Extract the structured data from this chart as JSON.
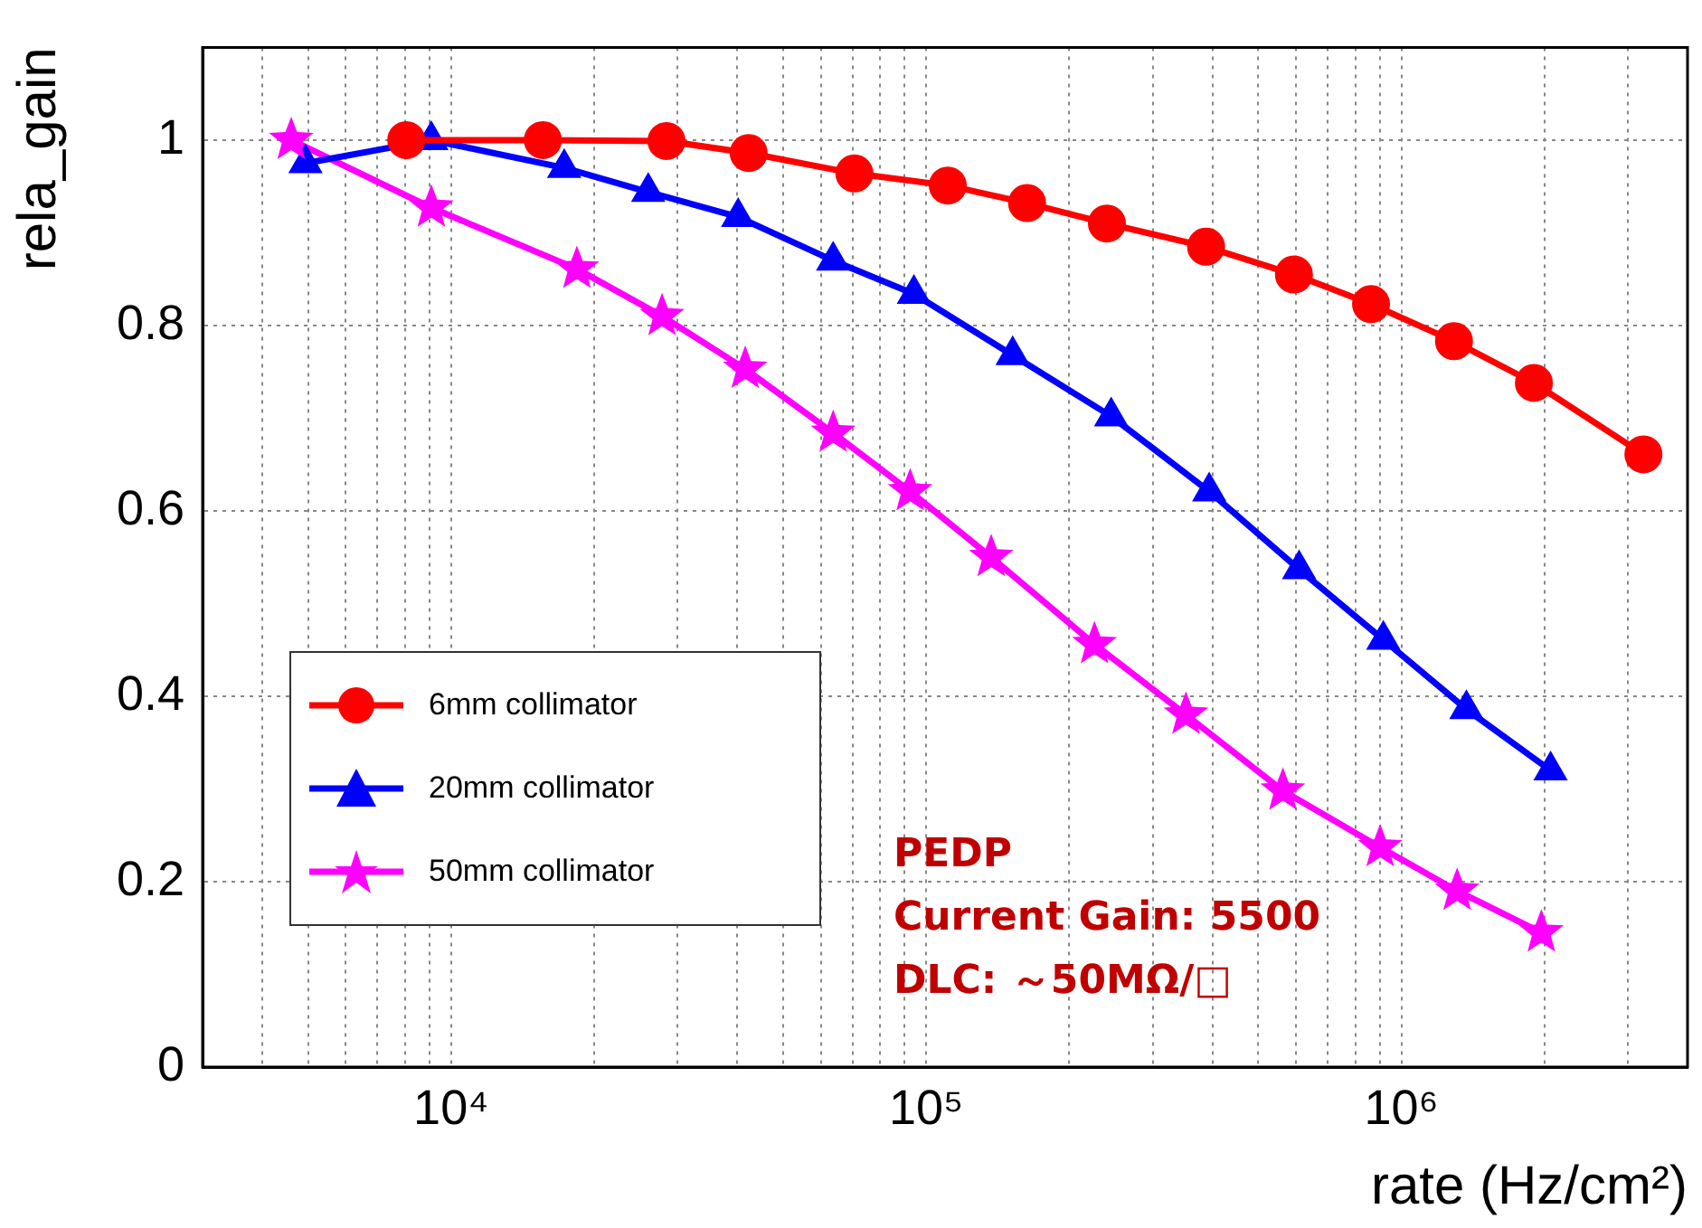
{
  "chart_data": {
    "type": "line",
    "xlabel": "rate (Hz/cm²)",
    "ylabel": "rela_gain",
    "log": "x",
    "grid": true,
    "legend": "left",
    "line_style": "solid",
    "xlim": [
      3000,
      4000000
    ],
    "ylim": [
      0,
      1.1
    ],
    "xticks": [
      {
        "value": 3000,
        "label": null
      },
      {
        "value": 4000,
        "label": null
      },
      {
        "value": 5000,
        "label": null
      },
      {
        "value": 6000,
        "label": null
      },
      {
        "value": 7000,
        "label": null
      },
      {
        "value": 8000,
        "label": null
      },
      {
        "value": 9000,
        "label": null
      },
      {
        "value": 10000,
        "label": "10⁴"
      },
      {
        "value": 20000,
        "label": null
      },
      {
        "value": 30000,
        "label": null
      },
      {
        "value": 40000,
        "label": null
      },
      {
        "value": 50000,
        "label": null
      },
      {
        "value": 60000,
        "label": null
      },
      {
        "value": 70000,
        "label": null
      },
      {
        "value": 80000,
        "label": null
      },
      {
        "value": 90000,
        "label": null
      },
      {
        "value": 100000,
        "label": "10⁵"
      },
      {
        "value": 200000,
        "label": null
      },
      {
        "value": 300000,
        "label": null
      },
      {
        "value": 400000,
        "label": null
      },
      {
        "value": 500000,
        "label": null
      },
      {
        "value": 600000,
        "label": null
      },
      {
        "value": 700000,
        "label": null
      },
      {
        "value": 800000,
        "label": null
      },
      {
        "value": 900000,
        "label": null
      },
      {
        "value": 1000000,
        "label": "10⁶"
      },
      {
        "value": 2000000,
        "label": null
      },
      {
        "value": 3000000,
        "label": null
      },
      {
        "value": 4000000,
        "label": null
      }
    ],
    "yticks": [
      0,
      0.2,
      0.4,
      0.6,
      0.8,
      1
    ],
    "annotations": [
      "PEDP",
      "Current Gain: 5500",
      "DLC: ～50MΩ/□"
    ],
    "series": [
      {
        "name": "6mm collimator",
        "color": "#ff0000",
        "marker": "circle",
        "x": [
          8050,
          15600,
          28400,
          42300,
          70600,
          111000,
          163000,
          240000,
          388000,
          594000,
          863000,
          1290000,
          1900000,
          3230000
        ],
        "values": [
          1.0,
          1.0,
          0.999,
          0.986,
          0.964,
          0.951,
          0.932,
          0.91,
          0.885,
          0.855,
          0.823,
          0.783,
          0.738,
          0.661
        ]
      },
      {
        "name": "20mm collimator",
        "color": "#0000ff",
        "marker": "triangle",
        "x": [
          4940,
          9090,
          17300,
          26000,
          40200,
          63700,
          94200,
          152000,
          245000,
          394000,
          609000,
          916000,
          1370000,
          2060000
        ],
        "values": [
          0.975,
          1.0,
          0.97,
          0.944,
          0.917,
          0.87,
          0.834,
          0.768,
          0.702,
          0.621,
          0.537,
          0.461,
          0.386,
          0.32
        ]
      },
      {
        "name": "50mm collimator",
        "color": "#ff00ff",
        "marker": "star",
        "x": [
          4610,
          9090,
          18400,
          27800,
          41600,
          63700,
          92500,
          137000,
          226000,
          352000,
          563000,
          902000,
          1310000,
          1970000
        ],
        "values": [
          1.0,
          0.927,
          0.861,
          0.81,
          0.753,
          0.684,
          0.621,
          0.55,
          0.456,
          0.38,
          0.298,
          0.237,
          0.19,
          0.145
        ]
      }
    ]
  }
}
